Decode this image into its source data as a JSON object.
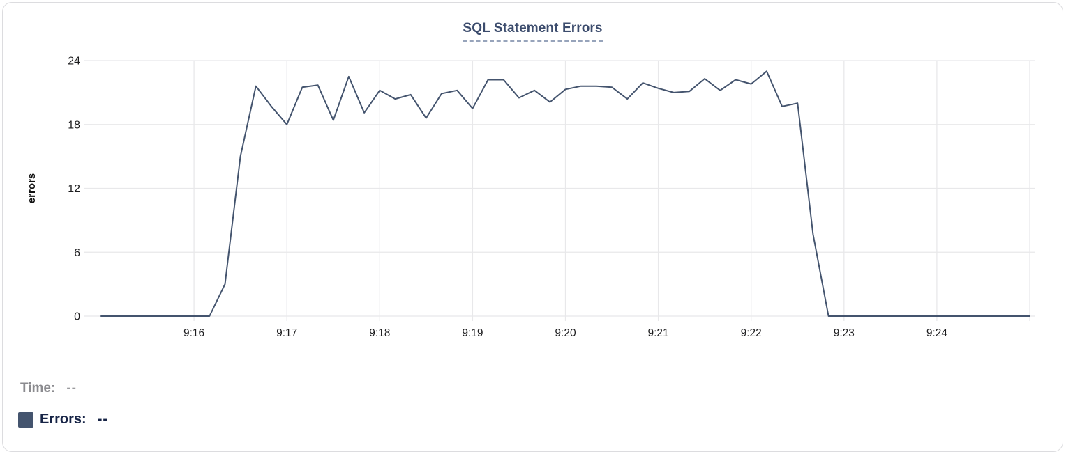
{
  "card": {
    "title": "SQL Statement Errors"
  },
  "tooltip_legend": {
    "time_label": "Time:",
    "time_value": "--",
    "errors_label": "Errors:",
    "errors_value": "--"
  },
  "colors": {
    "line": "#44546e",
    "legend_swatch": "#44546e",
    "title_text": "#3c4c6d",
    "title_underline": "#97a4bb",
    "grid": "#e8e8ea",
    "axis_text": "#1d1d1f",
    "card_border": "#dcdcdf"
  },
  "chart_data": {
    "type": "line",
    "title": "SQL Statement Errors",
    "xlabel": "",
    "ylabel": "errors",
    "ylim": [
      0,
      24
    ],
    "y_ticks": [
      0,
      6,
      12,
      18,
      24
    ],
    "x_tick_labels": [
      "9:16",
      "9:17",
      "9:18",
      "9:19",
      "9:20",
      "9:21",
      "9:22",
      "9:23",
      "9:24"
    ],
    "x_start": "9:15:00",
    "x_end": "9:25:00",
    "sample_interval_seconds": 10,
    "grid": true,
    "legend_position": "bottom",
    "series": [
      {
        "name": "Errors",
        "color": "#44546e",
        "values": [
          0,
          0,
          0,
          0,
          0,
          0,
          0,
          0,
          3,
          15,
          21.6,
          19.7,
          18,
          21.5,
          21.7,
          18.4,
          22.5,
          19.1,
          21.2,
          20.4,
          20.8,
          18.6,
          20.9,
          21.2,
          19.5,
          22.2,
          22.2,
          20.5,
          21.2,
          20.1,
          21.3,
          21.6,
          21.6,
          21.5,
          20.4,
          21.9,
          21.4,
          21.0,
          21.1,
          22.3,
          21.2,
          22.2,
          21.8,
          23.0,
          19.7,
          20,
          7.7,
          0,
          0,
          0,
          0,
          0,
          0,
          0,
          0,
          0,
          0,
          0,
          0,
          0,
          0
        ]
      }
    ]
  }
}
